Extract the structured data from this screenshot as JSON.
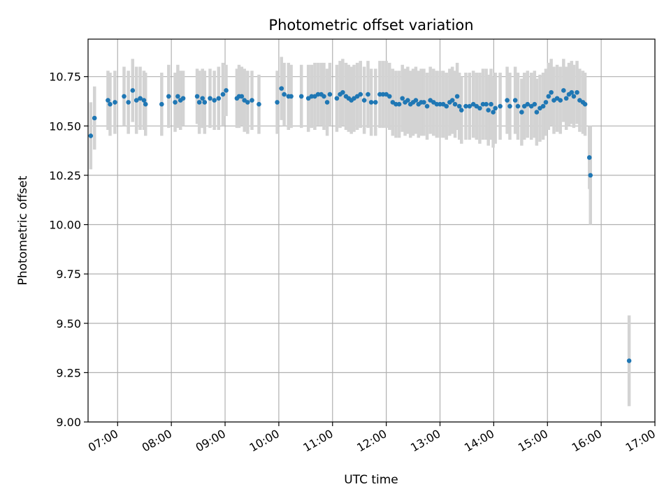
{
  "chart_data": {
    "type": "scatter",
    "title": "Photometric offset variation",
    "xlabel": "UTC time",
    "ylabel": "Photometric offset",
    "xlim": [
      6.45,
      17.0
    ],
    "ylim": [
      9.0,
      10.94
    ],
    "grid": true,
    "marker_color": "#1f77b4",
    "errorbar_color": "#d3d3d3",
    "x_ticks": [
      {
        "value": 7,
        "label": "07:00"
      },
      {
        "value": 8,
        "label": "08:00"
      },
      {
        "value": 9,
        "label": "09:00"
      },
      {
        "value": 10,
        "label": "10:00"
      },
      {
        "value": 11,
        "label": "11:00"
      },
      {
        "value": 12,
        "label": "12:00"
      },
      {
        "value": 13,
        "label": "13:00"
      },
      {
        "value": 14,
        "label": "14:00"
      },
      {
        "value": 15,
        "label": "15:00"
      },
      {
        "value": 16,
        "label": "16:00"
      },
      {
        "value": 17,
        "label": "17:00"
      }
    ],
    "y_ticks": [
      {
        "value": 9.0,
        "label": "9.00"
      },
      {
        "value": 9.25,
        "label": "9.25"
      },
      {
        "value": 9.5,
        "label": "9.50"
      },
      {
        "value": 9.75,
        "label": "9.75"
      },
      {
        "value": 10.0,
        "label": "10.00"
      },
      {
        "value": 10.25,
        "label": "10.25"
      },
      {
        "value": 10.5,
        "label": "10.50"
      },
      {
        "value": 10.75,
        "label": "10.75"
      }
    ],
    "series": [
      {
        "name": "Photometric offset",
        "points": [
          [
            6.5,
            10.45,
            0.17
          ],
          [
            6.57,
            10.54,
            0.16
          ],
          [
            6.82,
            10.63,
            0.15
          ],
          [
            6.86,
            10.61,
            0.16
          ],
          [
            6.95,
            10.62,
            0.16
          ],
          [
            7.12,
            10.65,
            0.15
          ],
          [
            7.2,
            10.62,
            0.16
          ],
          [
            7.28,
            10.68,
            0.16
          ],
          [
            7.35,
            10.63,
            0.17
          ],
          [
            7.42,
            10.64,
            0.16
          ],
          [
            7.49,
            10.63,
            0.15
          ],
          [
            7.52,
            10.61,
            0.16
          ],
          [
            7.82,
            10.61,
            0.16
          ],
          [
            7.95,
            10.65,
            0.16
          ],
          [
            8.07,
            10.62,
            0.15
          ],
          [
            8.12,
            10.65,
            0.16
          ],
          [
            8.17,
            10.63,
            0.15
          ],
          [
            8.22,
            10.64,
            0.14
          ],
          [
            8.48,
            10.65,
            0.14
          ],
          [
            8.52,
            10.62,
            0.16
          ],
          [
            8.58,
            10.64,
            0.15
          ],
          [
            8.62,
            10.62,
            0.16
          ],
          [
            8.72,
            10.64,
            0.15
          ],
          [
            8.8,
            10.63,
            0.15
          ],
          [
            8.88,
            10.64,
            0.16
          ],
          [
            8.96,
            10.66,
            0.16
          ],
          [
            9.02,
            10.68,
            0.13
          ],
          [
            9.22,
            10.64,
            0.15
          ],
          [
            9.26,
            10.65,
            0.16
          ],
          [
            9.31,
            10.65,
            0.15
          ],
          [
            9.36,
            10.63,
            0.16
          ],
          [
            9.42,
            10.62,
            0.16
          ],
          [
            9.5,
            10.63,
            0.15
          ],
          [
            9.63,
            10.61,
            0.15
          ],
          [
            9.97,
            10.62,
            0.16
          ],
          [
            10.05,
            10.69,
            0.16
          ],
          [
            10.1,
            10.66,
            0.16
          ],
          [
            10.18,
            10.65,
            0.17
          ],
          [
            10.23,
            10.65,
            0.16
          ],
          [
            10.42,
            10.65,
            0.16
          ],
          [
            10.55,
            10.64,
            0.17
          ],
          [
            10.61,
            10.65,
            0.16
          ],
          [
            10.67,
            10.65,
            0.17
          ],
          [
            10.73,
            10.66,
            0.16
          ],
          [
            10.79,
            10.66,
            0.16
          ],
          [
            10.84,
            10.65,
            0.17
          ],
          [
            10.9,
            10.62,
            0.17
          ],
          [
            10.95,
            10.66,
            0.16
          ],
          [
            11.08,
            10.64,
            0.17
          ],
          [
            11.14,
            10.66,
            0.17
          ],
          [
            11.19,
            10.67,
            0.17
          ],
          [
            11.25,
            10.65,
            0.17
          ],
          [
            11.3,
            10.64,
            0.17
          ],
          [
            11.35,
            10.63,
            0.17
          ],
          [
            11.4,
            10.64,
            0.17
          ],
          [
            11.46,
            10.65,
            0.17
          ],
          [
            11.52,
            10.66,
            0.17
          ],
          [
            11.59,
            10.63,
            0.17
          ],
          [
            11.66,
            10.66,
            0.17
          ],
          [
            11.72,
            10.62,
            0.17
          ],
          [
            11.8,
            10.62,
            0.17
          ],
          [
            11.88,
            10.66,
            0.17
          ],
          [
            11.94,
            10.66,
            0.17
          ],
          [
            12.0,
            10.66,
            0.17
          ],
          [
            12.06,
            10.65,
            0.17
          ],
          [
            12.12,
            10.62,
            0.17
          ],
          [
            12.18,
            10.61,
            0.17
          ],
          [
            12.24,
            10.61,
            0.17
          ],
          [
            12.3,
            10.64,
            0.17
          ],
          [
            12.35,
            10.62,
            0.17
          ],
          [
            12.4,
            10.63,
            0.17
          ],
          [
            12.45,
            10.61,
            0.17
          ],
          [
            12.5,
            10.62,
            0.17
          ],
          [
            12.55,
            10.63,
            0.17
          ],
          [
            12.6,
            10.61,
            0.17
          ],
          [
            12.65,
            10.62,
            0.17
          ],
          [
            12.7,
            10.62,
            0.17
          ],
          [
            12.76,
            10.6,
            0.17
          ],
          [
            12.82,
            10.63,
            0.17
          ],
          [
            12.88,
            10.62,
            0.17
          ],
          [
            12.94,
            10.61,
            0.17
          ],
          [
            13.0,
            10.61,
            0.17
          ],
          [
            13.06,
            10.61,
            0.17
          ],
          [
            13.12,
            10.6,
            0.17
          ],
          [
            13.18,
            10.62,
            0.17
          ],
          [
            13.23,
            10.63,
            0.17
          ],
          [
            13.28,
            10.61,
            0.17
          ],
          [
            13.32,
            10.65,
            0.17
          ],
          [
            13.36,
            10.6,
            0.17
          ],
          [
            13.4,
            10.58,
            0.17
          ],
          [
            13.48,
            10.6,
            0.17
          ],
          [
            13.55,
            10.6,
            0.17
          ],
          [
            13.62,
            10.61,
            0.17
          ],
          [
            13.68,
            10.6,
            0.17
          ],
          [
            13.74,
            10.59,
            0.18
          ],
          [
            13.8,
            10.61,
            0.18
          ],
          [
            13.86,
            10.61,
            0.18
          ],
          [
            13.9,
            10.58,
            0.18
          ],
          [
            13.95,
            10.61,
            0.18
          ],
          [
            13.99,
            10.57,
            0.18
          ],
          [
            14.03,
            10.59,
            0.18
          ],
          [
            14.12,
            10.6,
            0.17
          ],
          [
            14.25,
            10.63,
            0.17
          ],
          [
            14.3,
            10.6,
            0.17
          ],
          [
            14.4,
            10.63,
            0.17
          ],
          [
            14.45,
            10.6,
            0.17
          ],
          [
            14.52,
            10.57,
            0.17
          ],
          [
            14.57,
            10.6,
            0.17
          ],
          [
            14.63,
            10.61,
            0.17
          ],
          [
            14.7,
            10.6,
            0.17
          ],
          [
            14.76,
            10.61,
            0.17
          ],
          [
            14.8,
            10.57,
            0.17
          ],
          [
            14.86,
            10.59,
            0.17
          ],
          [
            14.92,
            10.6,
            0.17
          ],
          [
            14.97,
            10.62,
            0.17
          ],
          [
            15.02,
            10.65,
            0.17
          ],
          [
            15.07,
            10.67,
            0.17
          ],
          [
            15.12,
            10.63,
            0.17
          ],
          [
            15.18,
            10.64,
            0.17
          ],
          [
            15.24,
            10.63,
            0.17
          ],
          [
            15.3,
            10.68,
            0.16
          ],
          [
            15.35,
            10.64,
            0.16
          ],
          [
            15.4,
            10.66,
            0.16
          ],
          [
            15.45,
            10.67,
            0.16
          ],
          [
            15.49,
            10.65,
            0.16
          ],
          [
            15.55,
            10.67,
            0.16
          ],
          [
            15.6,
            10.63,
            0.16
          ],
          [
            15.66,
            10.62,
            0.16
          ],
          [
            15.7,
            10.61,
            0.16
          ],
          [
            15.78,
            10.34,
            0.16
          ],
          [
            15.8,
            10.25,
            0.25
          ],
          [
            16.52,
            9.31,
            0.23
          ]
        ]
      }
    ]
  }
}
